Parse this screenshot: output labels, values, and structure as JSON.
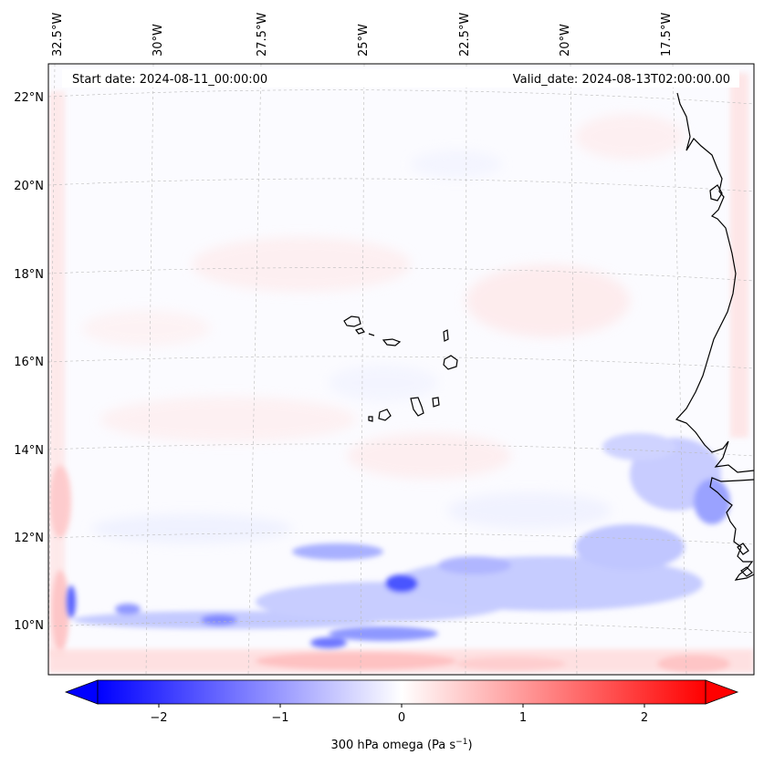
{
  "map": {
    "title": "",
    "start_date_text": "Start date: 2024-08-11_00:00:00",
    "valid_date_text": "Valid_date: 2024-08-13T02:00:00.00",
    "projection": "lambert-conformal",
    "extent": {
      "lon_min": -32.7,
      "lon_max": -15.3,
      "lat_min": 8.8,
      "lat_max": 22.8
    },
    "lon_labels": [
      "32.5°W",
      "30°W",
      "27.5°W",
      "25°W",
      "22.5°W",
      "20°W",
      "17.5°W"
    ],
    "lat_labels": [
      "22°N",
      "20°N",
      "18°N",
      "16°N",
      "14°N",
      "12°N",
      "10°N"
    ],
    "gridlines": true,
    "field": "omega",
    "level": "300 hPa",
    "features": [
      "Cape Verde islands",
      "West African coastline (Mauritania, Senegal, Gambia, Guinea-Bissau)"
    ]
  },
  "colorbar": {
    "colormap": "bwr",
    "vmin": -2.5,
    "vmax": 2.5,
    "extend": "both",
    "ticks": [
      "−2",
      "−1",
      "0",
      "1",
      "2"
    ],
    "label": "300 hPa omega (Pa s",
    "label_sup": "−1",
    "label_end": ")",
    "colors": {
      "min": "#0000ff",
      "mid": "#ffffff",
      "max": "#ff0000"
    }
  }
}
